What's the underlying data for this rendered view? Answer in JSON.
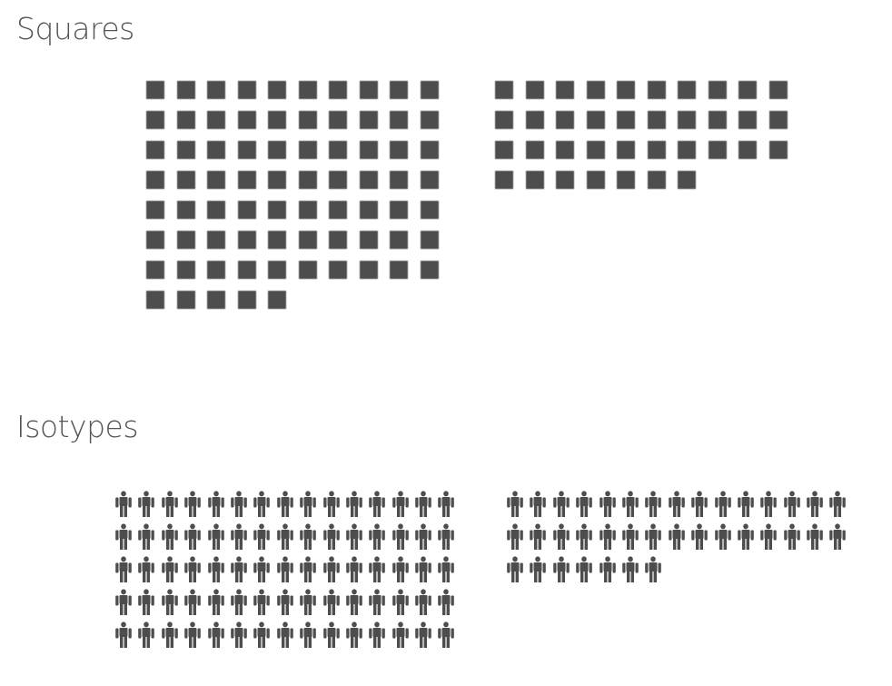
{
  "squares": {
    "title": "Squares",
    "groups": [
      {
        "count": 75
      },
      {
        "count": 37
      }
    ]
  },
  "isotypes": {
    "title": "Isotypes",
    "icon": "person-icon",
    "groups": [
      {
        "count": 75
      },
      {
        "count": 37
      }
    ]
  },
  "colors": {
    "mark": "#4d4d4d",
    "title": "#555555"
  }
}
